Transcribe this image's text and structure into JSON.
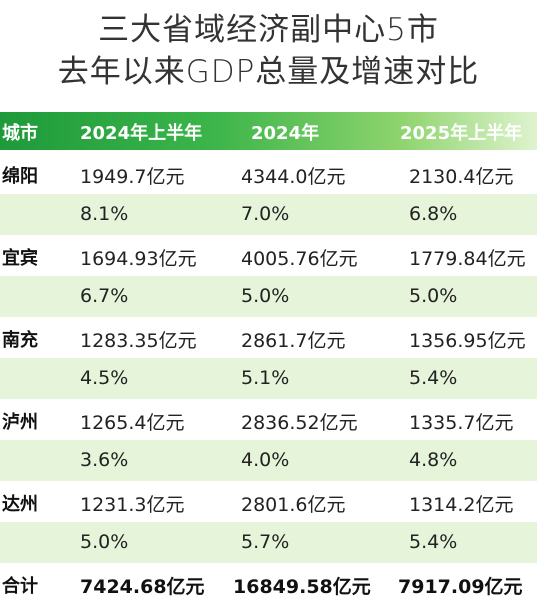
{
  "title_line1": "三大省域经济副中心5市",
  "title_line2": "去年以来GDP总量及增速对比",
  "headers": [
    "城市",
    "2024年上半年",
    "2024年",
    "2025年上半年"
  ],
  "rows": [
    {
      "city": "绵阳",
      "gdp": [
        "1949.7亿元",
        "4344.0亿元",
        "2130.4亿元"
      ],
      "growth": [
        "8.1%",
        "7.0%",
        "6.8%"
      ]
    },
    {
      "city": "宜宾",
      "gdp": [
        "1694.93亿元",
        "4005.76亿元",
        "1779.84亿元"
      ],
      "growth": [
        "6.7%",
        "5.0%",
        "5.0%"
      ]
    },
    {
      "city": "南充",
      "gdp": [
        "1283.35亿元",
        "2861.7亿元",
        "1356.95亿元"
      ],
      "growth": [
        "4.5%",
        "5.1%",
        "5.4%"
      ]
    },
    {
      "city": "泸州",
      "gdp": [
        "1265.4亿元",
        "2836.52亿元",
        "1335.7亿元"
      ],
      "growth": [
        "3.6%",
        "4.0%",
        "4.8%"
      ]
    },
    {
      "city": "达州",
      "gdp": [
        "1231.3亿元",
        "2801.6亿元",
        "1314.2亿元"
      ],
      "growth": [
        "5.0%",
        "5.7%",
        "5.4%"
      ]
    }
  ],
  "total": {
    "label": "合计",
    "values": [
      "7424.68亿元",
      "16849.58亿元",
      "7917.09亿元"
    ]
  },
  "colors": {
    "header_green": "#1e9a3a",
    "row_shade": "#e6f4da"
  }
}
